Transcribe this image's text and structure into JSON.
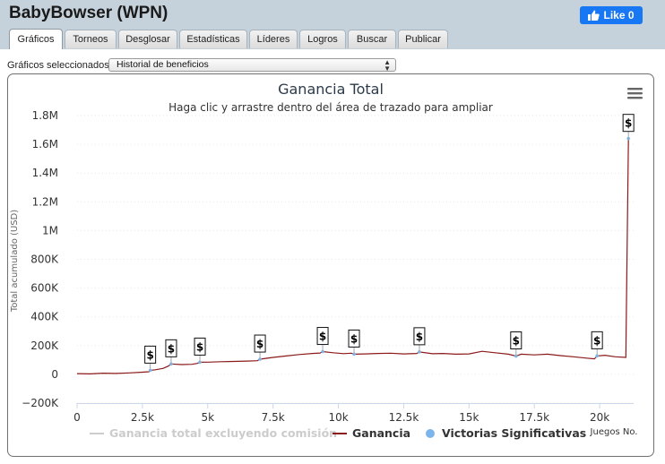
{
  "app": {
    "title": "BabyBowser (WPN)"
  },
  "facebook": {
    "label": "Like 0"
  },
  "tabs": [
    {
      "label": "Gráficos",
      "active": true
    },
    {
      "label": "Torneos"
    },
    {
      "label": "Desglosar"
    },
    {
      "label": "Estadísticas"
    },
    {
      "label": "Líderes"
    },
    {
      "label": "Logros"
    },
    {
      "label": "Buscar"
    },
    {
      "label": "Publicar"
    }
  ],
  "chart_select": {
    "label": "Gráficos seleccionados:",
    "value": "Historial de beneficios"
  },
  "menu_icon": "hamburger-menu-icon",
  "colors": {
    "line": "#8b1a1a",
    "marker": "#7cb5ec",
    "title": "#2b3a4a"
  },
  "chart_data": {
    "type": "line",
    "title": "Ganancia Total",
    "subtitle": "Haga clic y arrastre dentro del área de trazado para ampliar",
    "ylabel": "Total acumulado (USD)",
    "xlabel": "Juegos No.",
    "xlim": [
      0,
      21300
    ],
    "ylim": [
      -200000,
      1800000
    ],
    "x_ticks": [
      {
        "value": 0,
        "label": "0"
      },
      {
        "value": 2500,
        "label": "2.5k"
      },
      {
        "value": 5000,
        "label": "5k"
      },
      {
        "value": 7500,
        "label": "7.5k"
      },
      {
        "value": 10000,
        "label": "10k"
      },
      {
        "value": 12500,
        "label": "12.5k"
      },
      {
        "value": 15000,
        "label": "15k"
      },
      {
        "value": 17500,
        "label": "17.5k"
      },
      {
        "value": 20000,
        "label": "20k"
      }
    ],
    "y_ticks": [
      {
        "value": -200000,
        "label": "−200K"
      },
      {
        "value": 0,
        "label": "0"
      },
      {
        "value": 200000,
        "label": "200K"
      },
      {
        "value": 400000,
        "label": "400K"
      },
      {
        "value": 600000,
        "label": "600K"
      },
      {
        "value": 800000,
        "label": "800K"
      },
      {
        "value": 1000000,
        "label": "1M"
      },
      {
        "value": 1200000,
        "label": "1.2M"
      },
      {
        "value": 1400000,
        "label": "1.4M"
      },
      {
        "value": 1600000,
        "label": "1.6M"
      },
      {
        "value": 1800000,
        "label": "1.8M"
      }
    ],
    "series": [
      {
        "name": "Ganancia total excluyendo comisión",
        "visible": false
      },
      {
        "name": "Ganancia",
        "x": [
          0,
          500,
          1000,
          1500,
          2000,
          2500,
          2750,
          2800,
          3000,
          3300,
          3500,
          3600,
          4000,
          4400,
          4600,
          4700,
          5000,
          5500,
          6000,
          6500,
          6900,
          7000,
          7500,
          8000,
          8500,
          9000,
          9300,
          9400,
          9800,
          10200,
          10500,
          10600,
          11000,
          11500,
          12000,
          12500,
          13000,
          13100,
          13600,
          14000,
          14500,
          15000,
          15500,
          16000,
          16500,
          16800,
          17000,
          17500,
          18000,
          18500,
          19000,
          19500,
          19800,
          19900,
          20200,
          20600,
          21000,
          21100
        ],
        "y": [
          5000,
          3000,
          8000,
          6000,
          10000,
          15000,
          18000,
          28000,
          32000,
          42000,
          58000,
          72000,
          68000,
          70000,
          76000,
          84000,
          85000,
          88000,
          90000,
          92000,
          95000,
          105000,
          118000,
          128000,
          138000,
          145000,
          148000,
          158000,
          150000,
          144000,
          147000,
          140000,
          142000,
          145000,
          147000,
          142000,
          145000,
          156000,
          143000,
          145000,
          140000,
          142000,
          160000,
          150000,
          140000,
          127000,
          140000,
          135000,
          140000,
          130000,
          122000,
          113000,
          108000,
          128000,
          133000,
          122000,
          118000,
          1640000
        ]
      },
      {
        "name": "Victorias Significativas",
        "points": [
          {
            "x": 2800,
            "y": 28000,
            "label": "$"
          },
          {
            "x": 3600,
            "y": 72000,
            "label": "$"
          },
          {
            "x": 4700,
            "y": 84000,
            "label": "$"
          },
          {
            "x": 7000,
            "y": 105000,
            "label": "$"
          },
          {
            "x": 9400,
            "y": 158000,
            "label": "$"
          },
          {
            "x": 10600,
            "y": 140000,
            "label": "$"
          },
          {
            "x": 13100,
            "y": 156000,
            "label": "$"
          },
          {
            "x": 16800,
            "y": 127000,
            "label": "$"
          },
          {
            "x": 19900,
            "y": 128000,
            "label": "$"
          },
          {
            "x": 21100,
            "y": 1640000,
            "label": "$"
          }
        ]
      }
    ],
    "legend_position": "bottom"
  }
}
